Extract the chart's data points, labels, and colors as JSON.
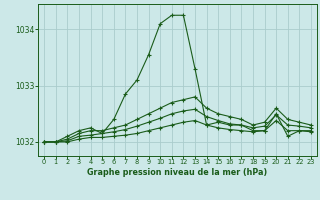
{
  "title": "Graphe pression niveau de la mer (hPa)",
  "background_color": "#cce8e8",
  "grid_color": "#aacccc",
  "line_color": "#1a5c1a",
  "xlim": [
    -0.5,
    23.5
  ],
  "ylim": [
    1031.75,
    1034.45
  ],
  "yticks": [
    1032,
    1033,
    1034
  ],
  "xticks": [
    0,
    1,
    2,
    3,
    4,
    5,
    6,
    7,
    8,
    9,
    10,
    11,
    12,
    13,
    14,
    15,
    16,
    17,
    18,
    19,
    20,
    21,
    22,
    23
  ],
  "series": [
    {
      "x": [
        0,
        1,
        2,
        3,
        4,
        5,
        6,
        7,
        8,
        9,
        10,
        11,
        12,
        13,
        14,
        15,
        16,
        17,
        18,
        19,
        20,
        21,
        22,
        23
      ],
      "y": [
        1032.0,
        1032.0,
        1032.1,
        1032.2,
        1032.25,
        1032.15,
        1032.4,
        1032.85,
        1033.1,
        1033.55,
        1034.1,
        1034.25,
        1034.25,
        1033.3,
        1032.3,
        1032.35,
        1032.3,
        1032.3,
        1032.2,
        1032.2,
        1032.5,
        1032.1,
        1032.2,
        1032.2
      ]
    },
    {
      "x": [
        0,
        1,
        2,
        3,
        4,
        5,
        6,
        7,
        8,
        9,
        10,
        11,
        12,
        13,
        14,
        15,
        16,
        17,
        18,
        19,
        20,
        21,
        22,
        23
      ],
      "y": [
        1032.0,
        1032.0,
        1032.05,
        1032.15,
        1032.2,
        1032.2,
        1032.25,
        1032.3,
        1032.4,
        1032.5,
        1032.6,
        1032.7,
        1032.75,
        1032.8,
        1032.6,
        1032.5,
        1032.45,
        1032.4,
        1032.3,
        1032.35,
        1032.6,
        1032.4,
        1032.35,
        1032.3
      ]
    },
    {
      "x": [
        0,
        1,
        2,
        3,
        4,
        5,
        6,
        7,
        8,
        9,
        10,
        11,
        12,
        13,
        14,
        15,
        16,
        17,
        18,
        19,
        20,
        21,
        22,
        23
      ],
      "y": [
        1032.0,
        1032.0,
        1032.02,
        1032.1,
        1032.12,
        1032.15,
        1032.18,
        1032.22,
        1032.28,
        1032.35,
        1032.42,
        1032.5,
        1032.55,
        1032.58,
        1032.45,
        1032.38,
        1032.32,
        1032.3,
        1032.25,
        1032.28,
        1032.48,
        1032.3,
        1032.28,
        1032.25
      ]
    },
    {
      "x": [
        0,
        1,
        2,
        3,
        4,
        5,
        6,
        7,
        8,
        9,
        10,
        11,
        12,
        13,
        14,
        15,
        16,
        17,
        18,
        19,
        20,
        21,
        22,
        23
      ],
      "y": [
        1032.0,
        1032.0,
        1032.0,
        1032.05,
        1032.08,
        1032.08,
        1032.1,
        1032.12,
        1032.15,
        1032.2,
        1032.25,
        1032.3,
        1032.35,
        1032.38,
        1032.3,
        1032.25,
        1032.22,
        1032.2,
        1032.18,
        1032.2,
        1032.38,
        1032.2,
        1032.2,
        1032.18
      ]
    }
  ]
}
